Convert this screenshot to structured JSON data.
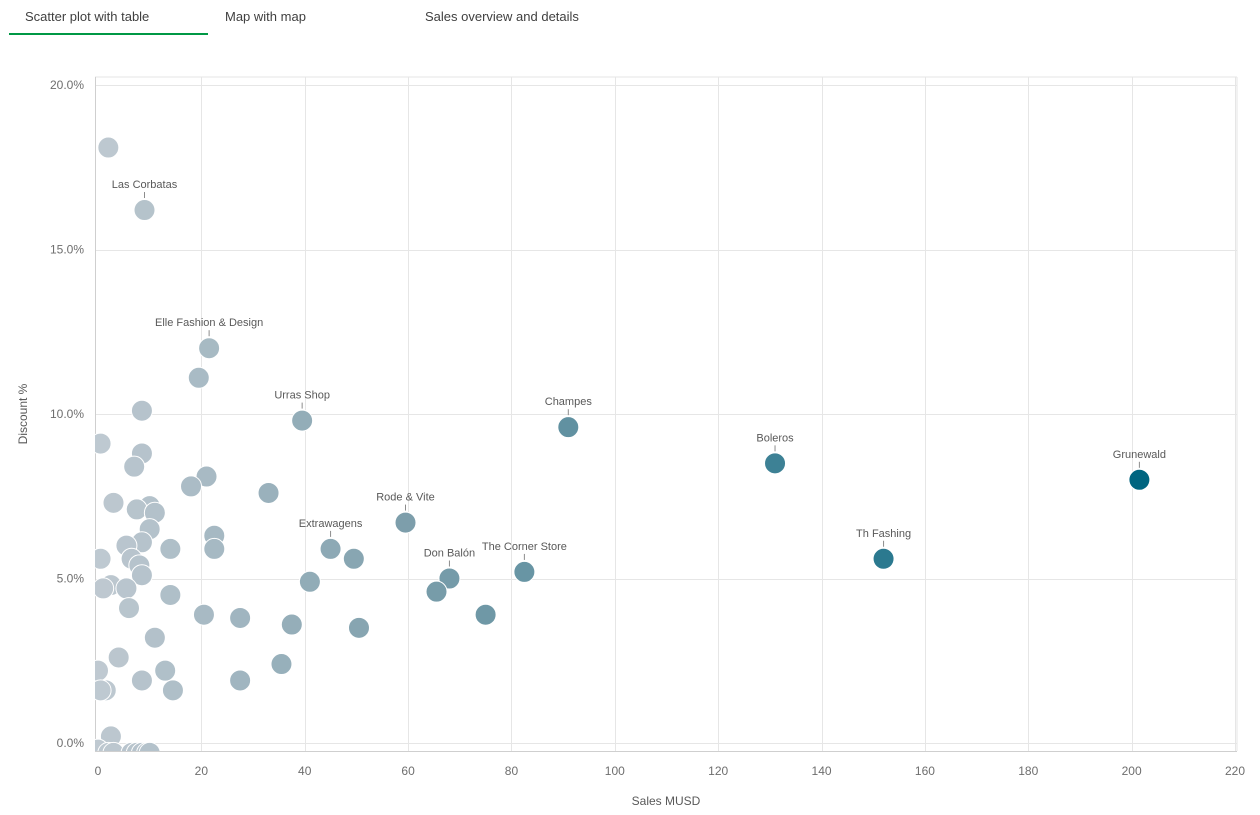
{
  "tabs": [
    {
      "label": "Scatter plot with table",
      "active": true
    },
    {
      "label": "Map with map",
      "active": false
    },
    {
      "label": "Sales overview and details",
      "active": false
    }
  ],
  "colors": {
    "accent": "#009845",
    "grid": "#e6e6e6",
    "point_low": "#bfc9d1",
    "point_mid": "#7c9eab",
    "point_high": "#006580"
  },
  "chart_data": {
    "type": "scatter",
    "xlabel": "Sales MUSD",
    "ylabel": "Discount %",
    "xlim": [
      0,
      220
    ],
    "ylim": [
      0,
      20
    ],
    "x_ticks": [
      0,
      20,
      40,
      60,
      80,
      100,
      120,
      140,
      160,
      180,
      200,
      220
    ],
    "y_ticks": [
      0,
      5,
      10,
      15,
      20
    ],
    "y_tick_labels": [
      "0.0%",
      "5.0%",
      "10.0%",
      "15.0%",
      "20.0%"
    ],
    "grid": true,
    "points": [
      {
        "x": 2,
        "y": 18.1
      },
      {
        "x": 9,
        "y": 16.2,
        "label": "Las Corbatas"
      },
      {
        "x": 21.5,
        "y": 12.0,
        "label": "Elle Fashion & Design"
      },
      {
        "x": 19.5,
        "y": 11.1
      },
      {
        "x": 39.5,
        "y": 9.8,
        "label": "Urras Shop"
      },
      {
        "x": 91,
        "y": 9.6,
        "label": "Champes"
      },
      {
        "x": 131,
        "y": 8.5,
        "label": "Boleros"
      },
      {
        "x": 201.5,
        "y": 8.0,
        "label": "Grunewald"
      },
      {
        "x": 8.5,
        "y": 10.1
      },
      {
        "x": 0.5,
        "y": 9.1
      },
      {
        "x": 8.5,
        "y": 8.8
      },
      {
        "x": 7,
        "y": 8.4
      },
      {
        "x": 21,
        "y": 8.1
      },
      {
        "x": 18,
        "y": 7.8
      },
      {
        "x": 33,
        "y": 7.6
      },
      {
        "x": 3,
        "y": 7.3
      },
      {
        "x": 10,
        "y": 7.2
      },
      {
        "x": 7.5,
        "y": 7.1
      },
      {
        "x": 11,
        "y": 7.0
      },
      {
        "x": 59.5,
        "y": 6.7,
        "label": "Rode & Vite"
      },
      {
        "x": 10,
        "y": 6.5
      },
      {
        "x": 22.5,
        "y": 6.3
      },
      {
        "x": 8.5,
        "y": 6.1
      },
      {
        "x": 5.5,
        "y": 6.0
      },
      {
        "x": 14,
        "y": 5.9
      },
      {
        "x": 22.5,
        "y": 5.9
      },
      {
        "x": 45,
        "y": 5.9,
        "label": "Extrawagens"
      },
      {
        "x": 49.5,
        "y": 5.6
      },
      {
        "x": 0.5,
        "y": 5.6
      },
      {
        "x": 6.5,
        "y": 5.6
      },
      {
        "x": 152,
        "y": 5.6,
        "label": "Th Fashing"
      },
      {
        "x": 8,
        "y": 5.4
      },
      {
        "x": 82.5,
        "y": 5.2,
        "label": "The Corner Store"
      },
      {
        "x": 8.5,
        "y": 5.1
      },
      {
        "x": 68,
        "y": 5.0,
        "label": "Don Balón"
      },
      {
        "x": 41,
        "y": 4.9
      },
      {
        "x": 2.5,
        "y": 4.8
      },
      {
        "x": 1,
        "y": 4.7
      },
      {
        "x": 5.5,
        "y": 4.7
      },
      {
        "x": 65.5,
        "y": 4.6
      },
      {
        "x": 14,
        "y": 4.5
      },
      {
        "x": 6,
        "y": 4.1
      },
      {
        "x": 20.5,
        "y": 3.9
      },
      {
        "x": 75,
        "y": 3.9
      },
      {
        "x": 27.5,
        "y": 3.8
      },
      {
        "x": 37.5,
        "y": 3.6
      },
      {
        "x": 50.5,
        "y": 3.5
      },
      {
        "x": 11,
        "y": 3.2
      },
      {
        "x": 4,
        "y": 2.6
      },
      {
        "x": 35.5,
        "y": 2.4
      },
      {
        "x": 0,
        "y": 2.2
      },
      {
        "x": 13,
        "y": 2.2
      },
      {
        "x": 8.5,
        "y": 1.9
      },
      {
        "x": 27.5,
        "y": 1.9
      },
      {
        "x": 1.5,
        "y": 1.6
      },
      {
        "x": 0.5,
        "y": 1.6
      },
      {
        "x": 14.5,
        "y": 1.6
      },
      {
        "x": 2.5,
        "y": 0.2
      },
      {
        "x": 0,
        "y": -0.2
      },
      {
        "x": 2,
        "y": -0.3
      },
      {
        "x": 3,
        "y": -0.3
      },
      {
        "x": 6.5,
        "y": -0.3
      },
      {
        "x": 7.5,
        "y": -0.3
      },
      {
        "x": 8.5,
        "y": -0.3
      },
      {
        "x": 9.5,
        "y": -0.3
      },
      {
        "x": 10,
        "y": -0.3
      }
    ]
  }
}
